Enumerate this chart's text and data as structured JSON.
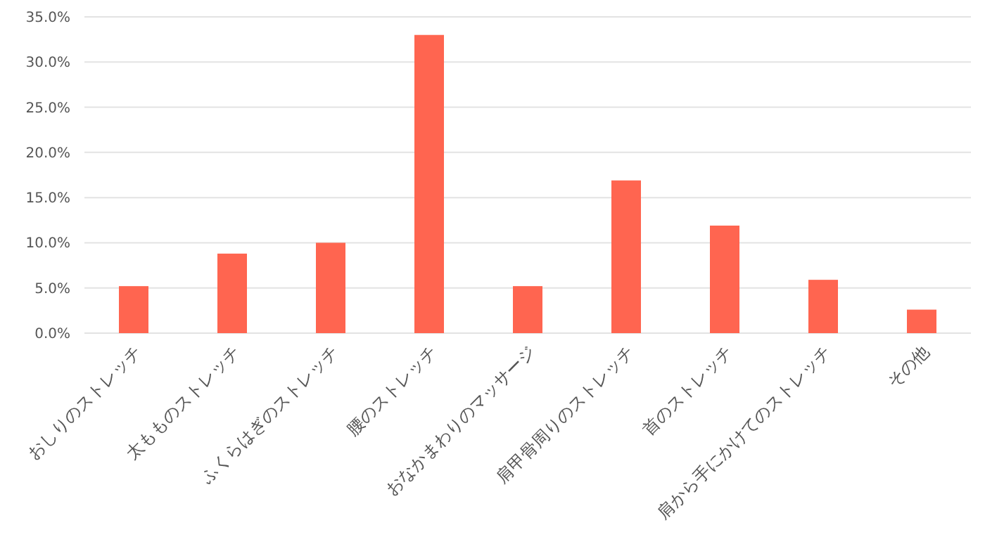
{
  "chart_data": {
    "type": "bar",
    "categories": [
      "おしりのストレッチ",
      "太もものストレッチ",
      "ふくらはぎのストレッチ",
      "腰のストレッチ",
      "おなかまわりのマッサージ",
      "肩甲骨周りのストレッチ",
      "首のストレッチ",
      "肩から手にかけてのストレッチ",
      "その他"
    ],
    "values": [
      5.2,
      8.8,
      10.0,
      33.0,
      5.2,
      16.9,
      11.9,
      5.9,
      2.6
    ],
    "color": "#ff6550",
    "ylim": [
      0,
      35
    ],
    "yticks": [
      {
        "value": 0,
        "label": "0.0%"
      },
      {
        "value": 5,
        "label": "5.0%"
      },
      {
        "value": 10,
        "label": "10.0%"
      },
      {
        "value": 15,
        "label": "15.0%"
      },
      {
        "value": 20,
        "label": "20.0%"
      },
      {
        "value": 25,
        "label": "25.0%"
      },
      {
        "value": 30,
        "label": "30.0%"
      },
      {
        "value": 35,
        "label": "35.0%"
      }
    ],
    "grid": "y"
  }
}
